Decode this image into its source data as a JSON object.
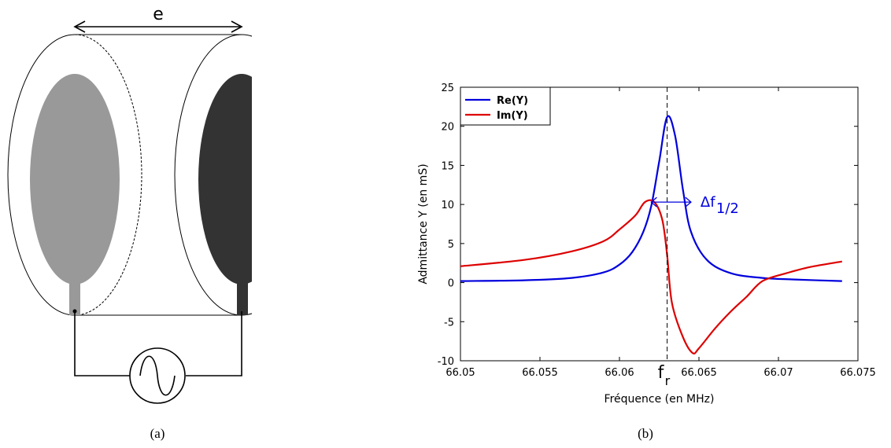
{
  "diagram": {
    "thickness_label": "e",
    "caption": "(a)",
    "colors": {
      "left_electrode": "#999999",
      "right_electrode": "#333333"
    },
    "source_icon": "ac-source-icon"
  },
  "chart_panel": {
    "caption": "(b)"
  },
  "chart_data": {
    "type": "line",
    "xlabel": "Fréquence (en MHz)",
    "ylabel": "Admittance Y (en mS)",
    "xlim": [
      66.05,
      66.075
    ],
    "ylim": [
      -10,
      25
    ],
    "xticks": [
      66.05,
      66.055,
      66.06,
      66.065,
      66.07,
      66.075
    ],
    "xtick_labels": [
      "66.05",
      "66.055",
      "66.06",
      "66.065",
      "66.07",
      "66.075"
    ],
    "yticks": [
      -10,
      -5,
      0,
      5,
      10,
      15,
      20,
      25
    ],
    "ytick_labels": [
      "-10",
      "-5",
      "0",
      "5",
      "10",
      "15",
      "20",
      "25"
    ],
    "grid": false,
    "legend": "top-left",
    "series": [
      {
        "name": "Re(Y)",
        "color": "#0000dd",
        "x": [
          66.05,
          66.054,
          66.057,
          66.059,
          66.06,
          66.0608,
          66.0615,
          66.062,
          66.0625,
          66.063,
          66.0635,
          66.064,
          66.0645,
          66.0655,
          66.067,
          66.069,
          66.071,
          66.074
        ],
        "y": [
          0.2,
          0.3,
          0.6,
          1.3,
          2.3,
          3.9,
          6.5,
          9.8,
          15.5,
          21.2,
          18.8,
          11.8,
          6.5,
          2.9,
          1.2,
          0.6,
          0.4,
          0.2
        ]
      },
      {
        "name": "Im(Y)",
        "color": "#dd0000",
        "x": [
          66.05,
          66.054,
          66.057,
          66.059,
          66.06,
          66.061,
          66.0616,
          66.0622,
          66.0627,
          66.063,
          66.0633,
          66.064,
          66.0646,
          66.065,
          66.066,
          66.067,
          66.068,
          66.069,
          66.0705,
          66.072,
          66.074
        ],
        "y": [
          2.1,
          2.9,
          4.0,
          5.3,
          6.8,
          8.6,
          10.3,
          10.3,
          8.0,
          3.5,
          -2.6,
          -7.0,
          -9.0,
          -8.4,
          -5.9,
          -3.7,
          -1.8,
          0.2,
          1.2,
          2.0,
          2.7
        ]
      }
    ],
    "annotations": {
      "resonance_label": "f",
      "resonance_sub": "r",
      "resonance_x": 66.063,
      "bandwidth_label": "Δf",
      "bandwidth_sub": "1/2",
      "bandwidth_y": 10.3,
      "bandwidth_x": [
        66.062,
        66.0645
      ]
    }
  }
}
